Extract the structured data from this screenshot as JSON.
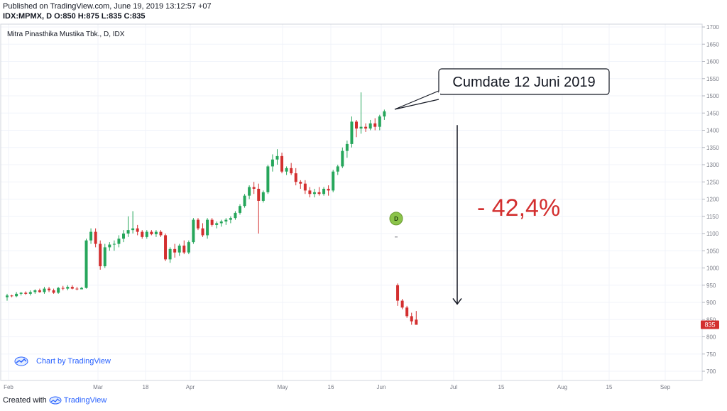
{
  "header": {
    "published": "Published on TradingView.com, June 19, 2019 13:12:57 +07",
    "symbol_line": "IDX:MPMX, D O:850 H:875 L:835 C:835"
  },
  "footer": {
    "created_with": "Created with",
    "brand": "TradingView"
  },
  "chart_data": {
    "type": "candlestick",
    "title": "Mitra Pinasthika Mustika Tbk., D, IDX",
    "watermark": "Chart by TradingView",
    "ylim": [
      680,
      1710
    ],
    "y_ticks": [
      700,
      750,
      800,
      850,
      900,
      950,
      1000,
      1050,
      1100,
      1150,
      1200,
      1250,
      1300,
      1350,
      1400,
      1450,
      1500,
      1550,
      1600,
      1650,
      1700
    ],
    "x_ticks": [
      "Feb",
      "Mar",
      "18",
      "Apr",
      "May",
      "16",
      "Jun",
      "Jul",
      "15",
      "Aug",
      "15",
      "Sep"
    ],
    "last_price": "835",
    "last_price_value": 835,
    "dividend_marker": {
      "label": "D",
      "value": 1090
    },
    "annotations": {
      "callout": "Cumdate 12 Juni 2019",
      "drop": "- 42,4%",
      "arrow_from": 1415,
      "arrow_to": 895
    },
    "colors": {
      "up": "#26a65b",
      "down": "#d32f2f",
      "drop_text": "#d32f2f",
      "dividend": "#8bc34a",
      "grid": "#f0f3fa"
    },
    "candles": [
      [
        915,
        925,
        905,
        920
      ],
      [
        920,
        922,
        915,
        918
      ],
      [
        918,
        930,
        915,
        925
      ],
      [
        925,
        930,
        920,
        928
      ],
      [
        928,
        932,
        922,
        925
      ],
      [
        925,
        935,
        920,
        930
      ],
      [
        930,
        938,
        925,
        935
      ],
      [
        935,
        940,
        928,
        930
      ],
      [
        930,
        945,
        925,
        940
      ],
      [
        940,
        945,
        930,
        935
      ],
      [
        935,
        940,
        925,
        928
      ],
      [
        928,
        945,
        925,
        942
      ],
      [
        942,
        948,
        935,
        940
      ],
      [
        940,
        950,
        935,
        945
      ],
      [
        945,
        950,
        938,
        940
      ],
      [
        940,
        945,
        935,
        938
      ],
      [
        938,
        945,
        940,
        942
      ],
      [
        942,
        1085,
        940,
        1080
      ],
      [
        1080,
        1115,
        1070,
        1105
      ],
      [
        1105,
        1115,
        1060,
        1070
      ],
      [
        1070,
        1080,
        995,
        1005
      ],
      [
        1005,
        1070,
        1000,
        1060
      ],
      [
        1060,
        1075,
        1050,
        1068
      ],
      [
        1068,
        1080,
        1050,
        1070
      ],
      [
        1070,
        1095,
        1060,
        1085
      ],
      [
        1085,
        1110,
        1075,
        1100
      ],
      [
        1100,
        1150,
        1090,
        1110
      ],
      [
        1110,
        1165,
        1100,
        1115
      ],
      [
        1115,
        1125,
        1095,
        1105
      ],
      [
        1105,
        1110,
        1085,
        1090
      ],
      [
        1090,
        1110,
        1085,
        1105
      ],
      [
        1105,
        1110,
        1095,
        1098
      ],
      [
        1098,
        1110,
        1090,
        1105
      ],
      [
        1105,
        1110,
        1090,
        1095
      ],
      [
        1095,
        1100,
        1020,
        1025
      ],
      [
        1025,
        1060,
        1015,
        1055
      ],
      [
        1055,
        1070,
        1030,
        1045
      ],
      [
        1045,
        1070,
        1035,
        1065
      ],
      [
        1065,
        1080,
        1040,
        1045
      ],
      [
        1045,
        1080,
        1040,
        1075
      ],
      [
        1075,
        1145,
        1070,
        1140
      ],
      [
        1140,
        1145,
        1110,
        1115
      ],
      [
        1115,
        1130,
        1090,
        1095
      ],
      [
        1095,
        1145,
        1085,
        1140
      ],
      [
        1140,
        1145,
        1120,
        1125
      ],
      [
        1125,
        1135,
        1115,
        1130
      ],
      [
        1130,
        1140,
        1120,
        1135
      ],
      [
        1135,
        1145,
        1125,
        1140
      ],
      [
        1140,
        1150,
        1130,
        1145
      ],
      [
        1145,
        1165,
        1140,
        1160
      ],
      [
        1160,
        1185,
        1155,
        1180
      ],
      [
        1180,
        1215,
        1175,
        1210
      ],
      [
        1210,
        1240,
        1200,
        1235
      ],
      [
        1235,
        1250,
        1215,
        1230
      ],
      [
        1230,
        1245,
        1100,
        1195
      ],
      [
        1195,
        1225,
        1190,
        1220
      ],
      [
        1220,
        1300,
        1215,
        1295
      ],
      [
        1295,
        1330,
        1280,
        1315
      ],
      [
        1315,
        1345,
        1300,
        1325
      ],
      [
        1325,
        1335,
        1275,
        1280
      ],
      [
        1280,
        1295,
        1270,
        1290
      ],
      [
        1290,
        1305,
        1270,
        1275
      ],
      [
        1275,
        1290,
        1240,
        1250
      ],
      [
        1250,
        1255,
        1230,
        1245
      ],
      [
        1245,
        1255,
        1215,
        1225
      ],
      [
        1225,
        1235,
        1205,
        1215
      ],
      [
        1215,
        1230,
        1205,
        1220
      ],
      [
        1220,
        1235,
        1210,
        1215
      ],
      [
        1215,
        1235,
        1210,
        1230
      ],
      [
        1230,
        1240,
        1210,
        1225
      ],
      [
        1225,
        1285,
        1220,
        1280
      ],
      [
        1280,
        1300,
        1270,
        1295
      ],
      [
        1295,
        1350,
        1290,
        1340
      ],
      [
        1340,
        1370,
        1320,
        1360
      ],
      [
        1360,
        1440,
        1350,
        1425
      ],
      [
        1425,
        1430,
        1380,
        1405
      ],
      [
        1405,
        1510,
        1390,
        1410
      ],
      [
        1410,
        1420,
        1395,
        1405
      ],
      [
        1405,
        1430,
        1400,
        1420
      ],
      [
        1420,
        1435,
        1400,
        1410
      ],
      [
        1410,
        1445,
        1400,
        1440
      ],
      [
        1440,
        1460,
        1430,
        1455
      ],
      [
        950,
        955,
        890,
        905
      ],
      [
        905,
        910,
        880,
        885
      ],
      [
        885,
        890,
        855,
        860
      ],
      [
        860,
        870,
        835,
        845
      ],
      [
        850,
        875,
        835,
        835
      ]
    ]
  }
}
